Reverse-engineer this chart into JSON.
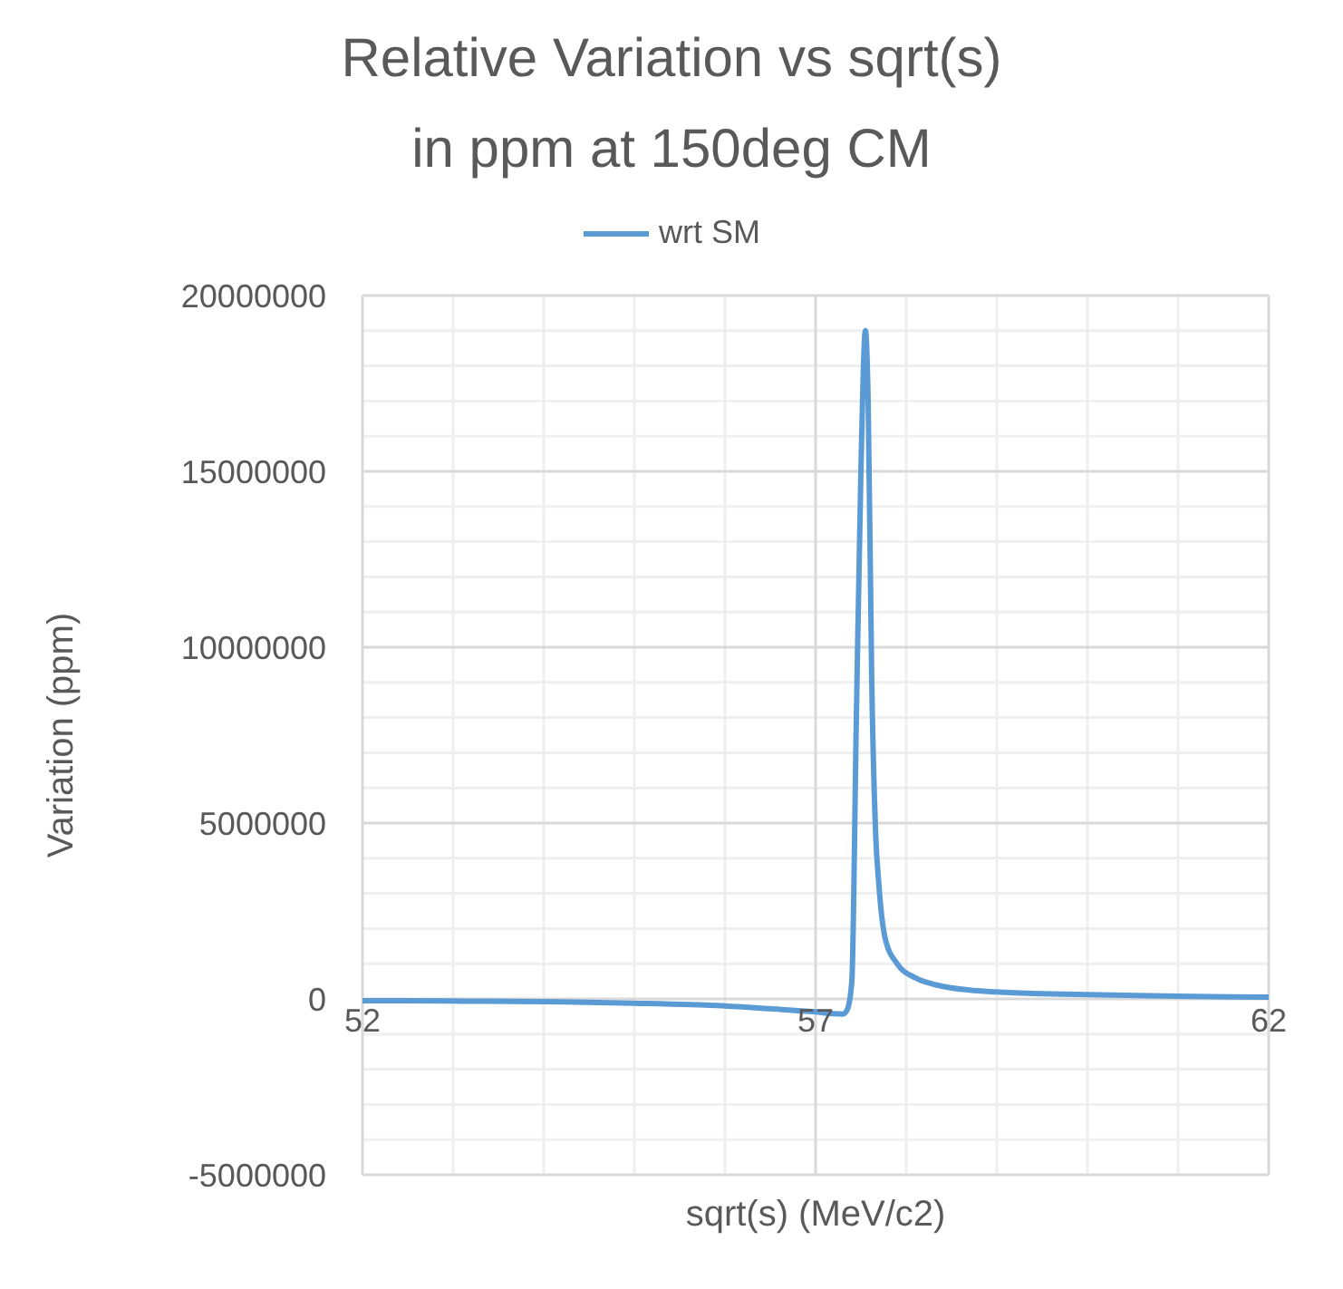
{
  "chart_data": {
    "type": "line",
    "title": "Relative Variation vs sqrt(s)\nin ppm at 150deg CM",
    "xlabel": "sqrt(s) (MeV/c2)",
    "ylabel": "Variation (ppm)",
    "x": [
      52,
      53,
      54,
      55,
      56,
      56.5,
      57,
      57.2,
      57.3,
      57.35,
      57.4,
      57.45,
      57.5,
      57.55,
      57.58,
      57.62,
      57.66,
      57.7,
      57.77,
      57.9,
      58.1,
      58.33,
      58.7,
      59,
      59.5,
      60,
      61,
      62
    ],
    "series": [
      {
        "name": "wrt SM",
        "color": "#5b9bd5",
        "values": [
          -50000,
          -60000,
          -80000,
          -120000,
          -200000,
          -280000,
          -370000,
          -420000,
          -430000,
          -300000,
          500000,
          8000000,
          15000000,
          19000000,
          17000000,
          9000000,
          4900000,
          3200000,
          1700000,
          1000000,
          600000,
          400000,
          250000,
          200000,
          150000,
          120000,
          80000,
          50000
        ]
      }
    ],
    "xlim": [
      52,
      62
    ],
    "xticks": [
      52,
      57,
      62
    ],
    "ylim": [
      -5000000,
      20000000
    ],
    "yticks": [
      -5000000,
      0,
      5000000,
      10000000,
      15000000,
      20000000
    ],
    "grid": true,
    "legend": "top",
    "marker": "none",
    "line_style": "solid"
  }
}
